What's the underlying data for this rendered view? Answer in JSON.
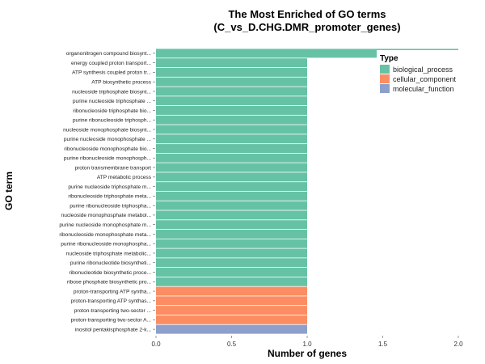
{
  "chart_data": {
    "type": "bar",
    "orientation": "horizontal",
    "title_line1": "The Most Enriched of GO terms",
    "title_line2": "(C_vs_D.CHG.DMR_promoter_genes)",
    "xlabel": "Number of genes",
    "ylabel": "GO term",
    "xlim": [
      0,
      2
    ],
    "xticks": [
      "0.0",
      "0.5",
      "1.0",
      "1.5",
      "2.0"
    ],
    "grid": false,
    "legend": {
      "title": "Type",
      "placement": "top-right",
      "entries": [
        {
          "name": "biological_process",
          "color": "#66C2A5"
        },
        {
          "name": "cellular_component",
          "color": "#FC8D62"
        },
        {
          "name": "molecular_function",
          "color": "#8DA0CB"
        }
      ]
    },
    "bars": [
      {
        "label": "organonitrogen compound biosynt...",
        "value": 2,
        "type": "biological_process"
      },
      {
        "label": "energy coupled proton transport...",
        "value": 1,
        "type": "biological_process"
      },
      {
        "label": "ATP synthesis coupled proton tr...",
        "value": 1,
        "type": "biological_process"
      },
      {
        "label": "ATP biosynthetic process",
        "value": 1,
        "type": "biological_process"
      },
      {
        "label": "nucleoside triphosphate biosynt...",
        "value": 1,
        "type": "biological_process"
      },
      {
        "label": "purine nucleoside triphosphate ...",
        "value": 1,
        "type": "biological_process"
      },
      {
        "label": "ribonucleoside triphosphate bio...",
        "value": 1,
        "type": "biological_process"
      },
      {
        "label": "purine ribonucleoside triphosph...",
        "value": 1,
        "type": "biological_process"
      },
      {
        "label": "nucleoside monophosphate biosynt...",
        "value": 1,
        "type": "biological_process"
      },
      {
        "label": "purine nucleoside monophosphate ...",
        "value": 1,
        "type": "biological_process"
      },
      {
        "label": "ribonucleoside monophosphate bio...",
        "value": 1,
        "type": "biological_process"
      },
      {
        "label": "purine ribonucleoside monophosph...",
        "value": 1,
        "type": "biological_process"
      },
      {
        "label": "proton transmembrane transport",
        "value": 1,
        "type": "biological_process"
      },
      {
        "label": "ATP metabolic process",
        "value": 1,
        "type": "biological_process"
      },
      {
        "label": "purine nucleoside triphosphate m...",
        "value": 1,
        "type": "biological_process"
      },
      {
        "label": "ribonucleoside triphosphate meta...",
        "value": 1,
        "type": "biological_process"
      },
      {
        "label": "purine ribonucleoside triphospha...",
        "value": 1,
        "type": "biological_process"
      },
      {
        "label": "nucleoside monophosphate metabol...",
        "value": 1,
        "type": "biological_process"
      },
      {
        "label": "purine nucleoside monophosphate m...",
        "value": 1,
        "type": "biological_process"
      },
      {
        "label": "ribonucleoside monophosphate meta...",
        "value": 1,
        "type": "biological_process"
      },
      {
        "label": "purine ribonucleoside monophospha...",
        "value": 1,
        "type": "biological_process"
      },
      {
        "label": "nucleoside triphosphate metabolic...",
        "value": 1,
        "type": "biological_process"
      },
      {
        "label": "purine ribonucleotide biosyntheti...",
        "value": 1,
        "type": "biological_process"
      },
      {
        "label": "ribonucleotide biosynthetic proce...",
        "value": 1,
        "type": "biological_process"
      },
      {
        "label": "ribose phosphate biosynthetic pro...",
        "value": 1,
        "type": "biological_process"
      },
      {
        "label": "proton-transporting ATP syntha...",
        "value": 1,
        "type": "cellular_component"
      },
      {
        "label": "proton-transporting ATP synthas...",
        "value": 1,
        "type": "cellular_component"
      },
      {
        "label": "proton-transporting two-sector ...",
        "value": 1,
        "type": "cellular_component"
      },
      {
        "label": "proton-transporting two-sector A...",
        "value": 1,
        "type": "cellular_component"
      },
      {
        "label": "inositol pentakisphosphate 2-k...",
        "value": 1,
        "type": "molecular_function"
      }
    ]
  }
}
